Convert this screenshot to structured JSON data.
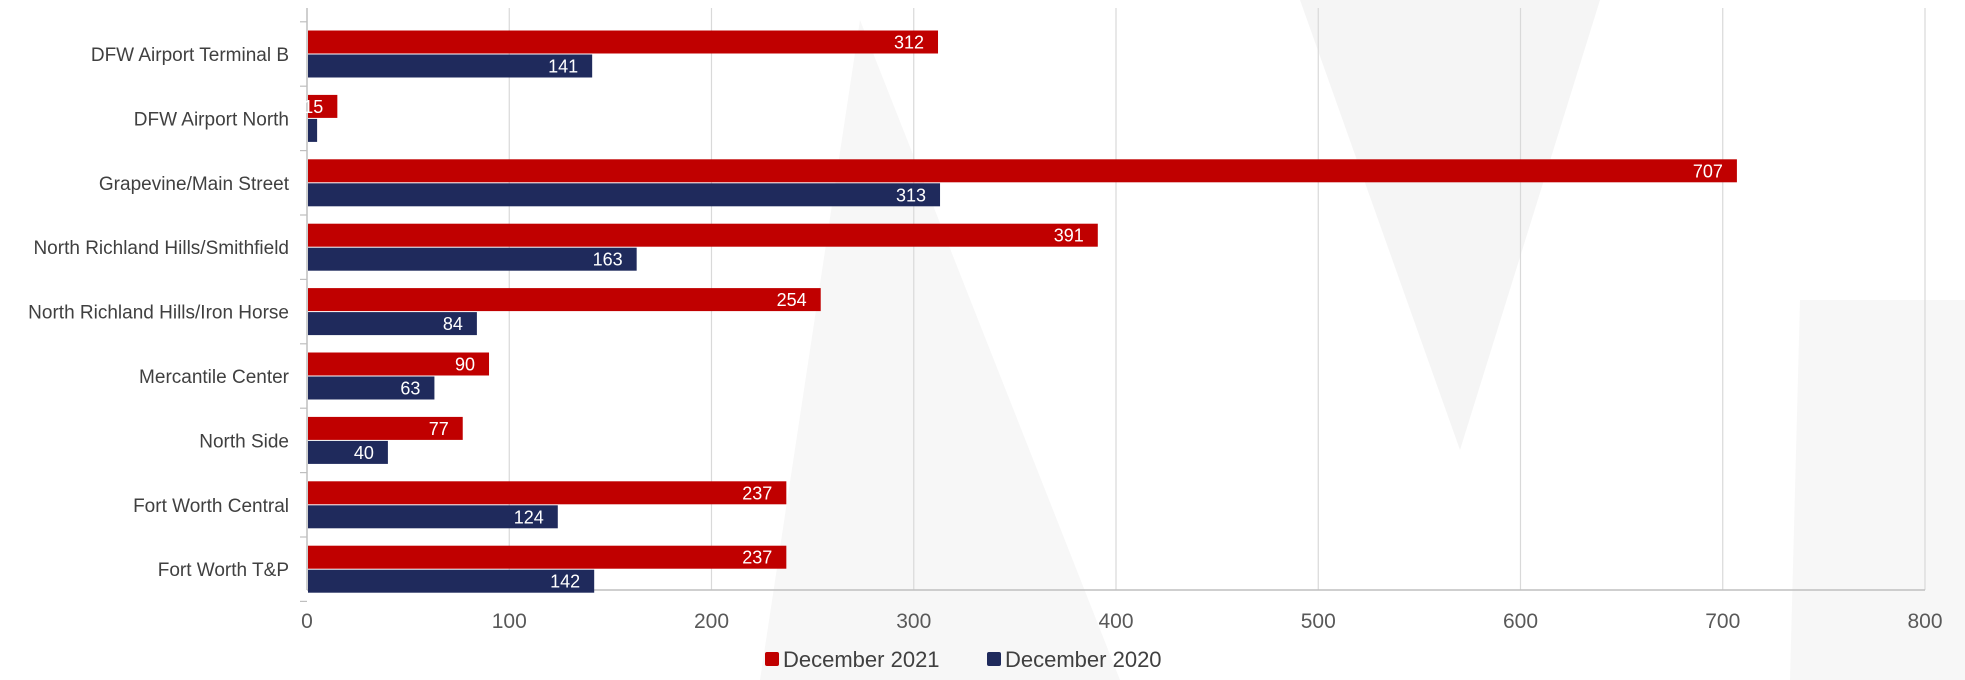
{
  "chart_data": {
    "type": "bar",
    "orientation": "horizontal",
    "categories": [
      "DFW Airport Terminal B",
      "DFW Airport North",
      "Grapevine/Main Street",
      "North Richland Hills/Smithfield",
      "North Richland Hills/Iron Horse",
      "Mercantile Center",
      "North Side",
      "Fort Worth Central",
      "Fort Worth T&P"
    ],
    "series": [
      {
        "name": "December 2021",
        "color": "#c00000",
        "values": [
          312,
          15,
          707,
          391,
          254,
          90,
          77,
          237,
          237
        ],
        "labels": [
          "312",
          "15",
          "707",
          "391",
          "254",
          "90",
          "77",
          "237",
          "237"
        ]
      },
      {
        "name": "December 2020",
        "color": "#1f2a5c",
        "values": [
          141,
          5,
          313,
          163,
          84,
          63,
          40,
          124,
          142
        ],
        "labels": [
          "141",
          "",
          "313",
          "163",
          "84",
          "63",
          "40",
          "124",
          "142"
        ]
      }
    ],
    "xticks": [
      "0",
      "100",
      "200",
      "300",
      "400",
      "500",
      "600",
      "700",
      "800"
    ],
    "xlim": [
      0,
      800
    ],
    "title": "",
    "xlabel": "",
    "ylabel": "",
    "grid": "vertical",
    "legend_position": "bottom"
  }
}
